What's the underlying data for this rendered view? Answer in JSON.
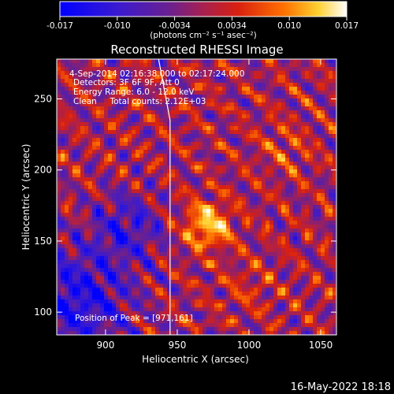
{
  "chart_data": {
    "type": "heatmap",
    "title": "Reconstructed RHESSI Image",
    "xlabel": "Heliocentric X (arcsec)",
    "ylabel": "Heliocentric Y (arcsec)",
    "xlim": [
      866,
      1061
    ],
    "ylim": [
      84,
      278
    ],
    "x_ticks": [
      900,
      950,
      1000,
      1050
    ],
    "y_ticks": [
      100,
      150,
      200,
      250
    ],
    "colorbar": {
      "ticks": [
        "-0.017",
        "-0.010",
        "-0.0034",
        "0.0034",
        "0.010",
        "0.017"
      ],
      "range": [
        -0.017,
        0.017
      ],
      "colormap": "blue-purple-red-yellow-white",
      "unit_label": "(photons cm⁻² s⁻¹ asec⁻²)"
    },
    "annotations": [
      "4-Sep-2014 02:16:38.000 to 02:17:24.000",
      "Detectors: 3F 6F 9F, Att 0",
      "Energy Range: 6.0 - 12.0 keV",
      "Clean     Total counts: 2.12E+03"
    ],
    "peak": {
      "label": "Position of Peak = [971,161]",
      "x": 971,
      "y": 161
    },
    "limb_line": [
      [
        937,
        278
      ],
      [
        945,
        235
      ],
      [
        945,
        84
      ]
    ],
    "grid": false,
    "legend": "none"
  },
  "footer": {
    "date": "16-May-2022 18:18"
  }
}
